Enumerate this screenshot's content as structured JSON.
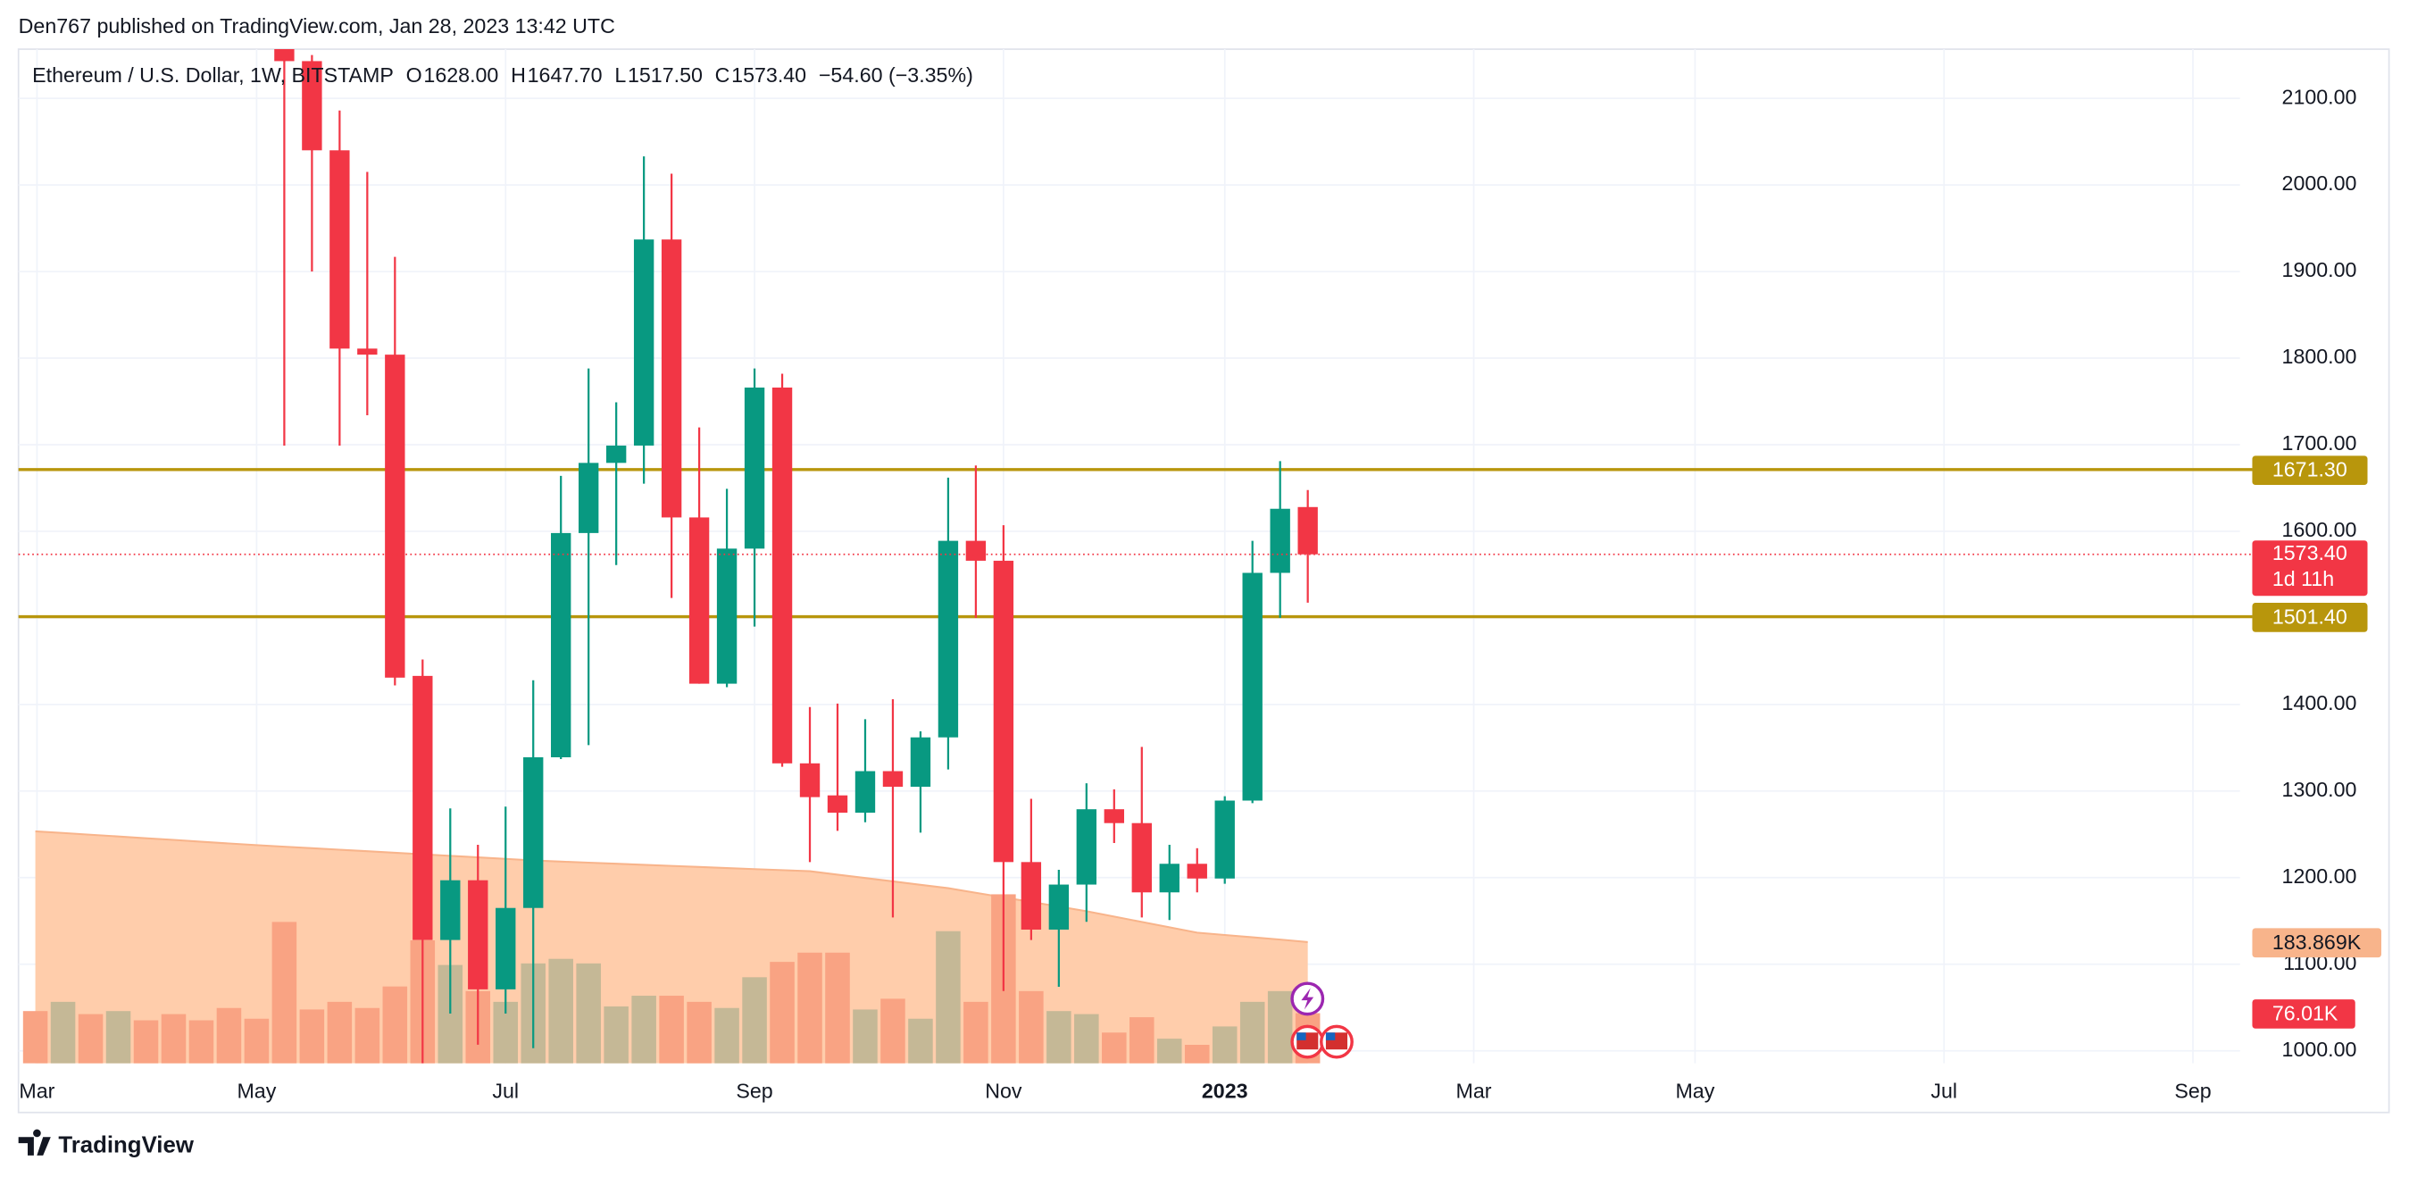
{
  "header": {
    "published": "Den767 published on TradingView.com, Jan 28, 2023 13:42 UTC",
    "symbol": "Ethereum / U.S. Dollar, 1W, BITSTAMP",
    "ohlc": [
      {
        "key": "O",
        "text": "1628.00"
      },
      {
        "key": "H",
        "text": "1647.70"
      },
      {
        "key": "L",
        "text": "1517.50"
      },
      {
        "key": "C",
        "text": "1573.40"
      }
    ],
    "change": "−54.60 (−3.35%)"
  },
  "footer": {
    "brand": "TradingView"
  },
  "chart_data": {
    "type": "candlestick",
    "x": [
      0,
      1,
      2,
      3,
      4,
      5,
      6,
      7,
      8,
      9,
      10,
      11,
      12,
      13,
      14,
      15,
      16,
      17,
      18,
      19,
      20,
      21,
      22,
      23,
      24,
      25,
      26,
      27,
      28,
      29,
      30,
      31,
      32,
      33,
      34,
      35,
      36,
      37,
      38,
      39,
      40,
      41,
      42,
      43,
      44,
      45,
      46
    ],
    "xlim": [
      -0.61,
      79.7
    ],
    "xticks": [
      {
        "value": 0.06,
        "label": "Mar"
      },
      {
        "value": 8,
        "label": "May"
      },
      {
        "value": 17,
        "label": "Jul"
      },
      {
        "value": 26,
        "label": "Sep"
      },
      {
        "value": 35,
        "label": "Nov"
      },
      {
        "value": 43,
        "label": "2023"
      },
      {
        "value": 52,
        "label": "Mar"
      },
      {
        "value": 60,
        "label": "May"
      },
      {
        "value": 69,
        "label": "Jul"
      },
      {
        "value": 78,
        "label": "Sep"
      }
    ],
    "ylim": [
      985.6,
      2156.8
    ],
    "yticks": [
      {
        "value": 1000,
        "label": "1000.00"
      },
      {
        "value": 1100,
        "label": "1100.00"
      },
      {
        "value": 1200,
        "label": "1200.00"
      },
      {
        "value": 1300,
        "label": "1300.00"
      },
      {
        "value": 1400,
        "label": "1400.00"
      },
      {
        "value": 1500,
        "label": "1500.00"
      },
      {
        "value": 1600,
        "label": "1600.00"
      },
      {
        "value": 1700,
        "label": "1700.00"
      },
      {
        "value": 1800,
        "label": "1800.00"
      },
      {
        "value": 1900,
        "label": "1900.00"
      },
      {
        "value": 2000,
        "label": "2000.00"
      },
      {
        "value": 2100,
        "label": "2100.00"
      }
    ],
    "grid": true,
    "up_color": "#089981",
    "down_color": "#f23645",
    "open": [
      null,
      null,
      null,
      null,
      null,
      null,
      null,
      null,
      null,
      2175,
      2143,
      2040,
      1811,
      1804,
      1433,
      1128,
      1197,
      1071,
      1165,
      1339,
      1598,
      1679,
      1699,
      1937,
      1616,
      1424,
      1580,
      1766,
      1332,
      1295,
      1275,
      1323,
      1305,
      1362,
      1589,
      1566,
      1218,
      1140,
      1192,
      1279,
      1263,
      1183,
      1216,
      1199,
      1289,
      1552,
      1628
    ],
    "high": [
      null,
      null,
      null,
      null,
      null,
      null,
      null,
      null,
      null,
      2200,
      2150,
      2086,
      2015,
      1917,
      1452,
      1280,
      1238,
      1282,
      1428,
      1664,
      1788,
      1749,
      2033,
      2013,
      1720,
      1649,
      1788,
      1782,
      1397,
      1401,
      1383,
      1406,
      1369,
      1662,
      1676,
      1607,
      1291,
      1209,
      1309,
      1302,
      1351,
      1238,
      1234,
      1294,
      1589,
      1681,
      1647.7
    ],
    "low": [
      null,
      null,
      null,
      null,
      null,
      null,
      null,
      null,
      null,
      1699,
      1900,
      1699,
      1734,
      1422,
      880,
      1043,
      1007,
      1043,
      1003,
      1337,
      1353,
      1561,
      1655,
      1523,
      1424,
      1420,
      1490,
      1328,
      1218,
      1254,
      1264,
      1154,
      1252,
      1325,
      1500,
      1069,
      1128,
      1074,
      1149,
      1240,
      1154,
      1151,
      1183,
      1193,
      1286,
      1500,
      1517.5
    ],
    "close": [
      null,
      null,
      null,
      null,
      null,
      null,
      null,
      null,
      null,
      2143,
      2040,
      1811,
      1804,
      1431,
      1128,
      1197,
      1071,
      1165,
      1339,
      1598,
      1679,
      1699,
      1937,
      1616,
      1424,
      1580,
      1766,
      1332,
      1293,
      1275,
      1323,
      1305,
      1362,
      1589,
      1566,
      1218,
      1140,
      1192,
      1279,
      1263,
      1183,
      1216,
      1199,
      1289,
      1552,
      1626,
      1573.4
    ],
    "y2lim": [
      0,
      1538
    ],
    "volume": {
      "values": [
        79.2,
        93.2,
        74.6,
        79.2,
        65.2,
        74.6,
        65.2,
        83.9,
        67.6,
        214.4,
        81.6,
        93.2,
        83.9,
        116.5,
        186.4,
        149.1,
        109.5,
        93.2,
        151.5,
        158.4,
        151.5,
        86.2,
        102.5,
        102.5,
        93.2,
        83.9,
        130.5,
        153.8,
        167.8,
        167.8,
        81.6,
        97.9,
        67.6,
        200.4,
        93.2,
        256.3,
        109.5,
        79.2,
        74.6,
        46.6,
        69.9,
        37.3,
        28.0,
        55.9,
        93.2,
        109.5,
        76.01
      ],
      "colors": [
        "#f9a383",
        "#c5b896",
        "#f9a383",
        "#c5b896",
        "#f9a383",
        "#f9a383",
        "#f9a383",
        "#f9a383",
        "#f9a383",
        "#f9a383",
        "#f9a383",
        "#f9a383",
        "#f9a383",
        "#f9a383",
        "#f9a383",
        "#c5b896",
        "#f9a383",
        "#c5b896",
        "#c5b896",
        "#c5b896",
        "#c5b896",
        "#c5b896",
        "#c5b896",
        "#f9a383",
        "#f9a383",
        "#c5b896",
        "#c5b896",
        "#f9a383",
        "#f9a383",
        "#f9a383",
        "#c5b896",
        "#f9a383",
        "#c5b896",
        "#c5b896",
        "#f9a383",
        "#f9a383",
        "#f9a383",
        "#c5b896",
        "#c5b896",
        "#f9a383",
        "#f9a383",
        "#c5b896",
        "#f9a383",
        "#c5b896",
        "#c5b896",
        "#c5b896",
        "#f9a383"
      ],
      "last_label": "76.01K",
      "label_color": "#f23645"
    },
    "volume_ma": {
      "values": [
        351.8,
        349.3,
        346.6,
        344.0,
        341.3,
        338.8,
        336.0,
        333.4,
        330.9,
        328.5,
        326.2,
        323.9,
        321.6,
        319.3,
        317.0,
        314.6,
        312.3,
        310.0,
        307.7,
        305.9,
        304.3,
        302.7,
        301.0,
        299.4,
        297.8,
        296.1,
        294.5,
        292.9,
        291.3,
        286.1,
        281.0,
        275.9,
        270.7,
        265.6,
        258.6,
        251.6,
        244.7,
        237.7,
        230.7,
        222.5,
        214.4,
        206.2,
        198.1,
        194.6,
        191.1,
        187.6,
        183.869
      ],
      "color": "#f8b48b",
      "fill": "#ffcdab",
      "last_label": "183.869K"
    },
    "levels": [
      {
        "value": 1671.3,
        "label": "1671.30",
        "color": "#b8960c"
      },
      {
        "value": 1501.4,
        "label": "1501.40",
        "color": "#b8960c"
      }
    ],
    "last_price": {
      "value": 1573.4,
      "label": "1573.40",
      "countdown": "1d 11h",
      "color": "#f23645"
    }
  }
}
